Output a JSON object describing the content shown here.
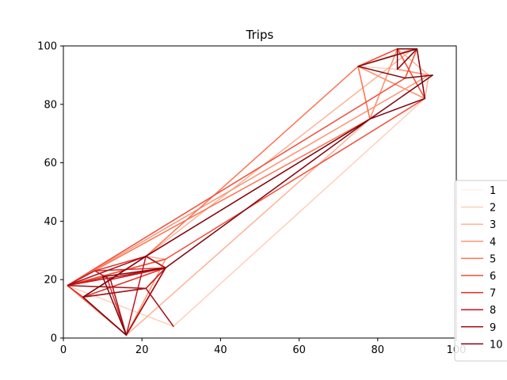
{
  "chart_data": {
    "type": "line",
    "title": "Trips",
    "xlabel": "",
    "ylabel": "",
    "xlim": [
      0,
      100
    ],
    "ylim": [
      0,
      100
    ],
    "xticks": [
      0,
      20,
      40,
      60,
      80,
      100
    ],
    "yticks": [
      0,
      20,
      40,
      60,
      80,
      100
    ],
    "grid": false,
    "legend_position": "right",
    "series": [
      {
        "name": "1",
        "color": "#fff0e9",
        "points": [
          [
            1,
            18
          ],
          [
            21,
            28
          ],
          [
            26,
            24
          ],
          [
            16,
            1
          ],
          [
            1,
            18
          ]
        ]
      },
      {
        "name": "2",
        "color": "#fdd0bc",
        "points": [
          [
            1,
            18
          ],
          [
            28,
            4
          ],
          [
            92,
            82
          ],
          [
            93,
            90
          ],
          [
            85,
            92
          ],
          [
            75,
            93
          ],
          [
            78,
            75
          ],
          [
            26,
            24
          ],
          [
            16,
            1
          ],
          [
            1,
            18
          ]
        ]
      },
      {
        "name": "3",
        "color": "#fcb398",
        "points": [
          [
            1,
            18
          ],
          [
            26,
            27
          ],
          [
            21,
            28
          ],
          [
            89,
            99
          ],
          [
            75,
            93
          ],
          [
            92,
            82
          ],
          [
            93,
            90
          ],
          [
            85,
            99
          ],
          [
            78,
            75
          ],
          [
            16,
            1
          ],
          [
            26,
            24
          ],
          [
            1,
            18
          ]
        ]
      },
      {
        "name": "4",
        "color": "#fc9474",
        "points": [
          [
            1,
            18
          ],
          [
            26,
            27
          ],
          [
            16,
            1
          ],
          [
            26,
            24
          ],
          [
            21,
            28
          ],
          [
            78,
            75
          ],
          [
            85,
            99
          ],
          [
            75,
            93
          ],
          [
            92,
            82
          ],
          [
            90,
            99
          ],
          [
            85,
            92
          ],
          [
            93,
            90
          ],
          [
            1,
            18
          ]
        ]
      },
      {
        "name": "5",
        "color": "#fb7353",
        "points": [
          [
            1,
            18
          ],
          [
            16,
            1
          ],
          [
            26,
            24
          ],
          [
            21,
            28
          ],
          [
            75,
            93
          ],
          [
            78,
            75
          ],
          [
            1,
            18
          ]
        ]
      },
      {
        "name": "6",
        "color": "#f14c37",
        "points": [
          [
            1,
            18
          ],
          [
            26,
            27
          ],
          [
            92,
            82
          ],
          [
            85,
            99
          ],
          [
            75,
            93
          ],
          [
            90,
            99
          ],
          [
            87,
            89
          ],
          [
            1,
            18
          ]
        ]
      },
      {
        "name": "7",
        "color": "#de2b25",
        "points": [
          [
            1,
            18
          ],
          [
            11,
            21
          ],
          [
            16,
            1
          ],
          [
            26,
            24
          ],
          [
            21,
            28
          ],
          [
            8,
            23
          ],
          [
            26,
            24
          ],
          [
            5,
            14
          ],
          [
            1,
            18
          ]
        ]
      },
      {
        "name": "8",
        "color": "#c2161b",
        "points": [
          [
            1,
            18
          ],
          [
            8,
            23
          ],
          [
            12,
            20
          ],
          [
            26,
            24
          ],
          [
            21,
            17
          ],
          [
            5,
            14
          ],
          [
            16,
            1
          ],
          [
            21,
            28
          ],
          [
            12,
            20
          ],
          [
            26,
            24
          ],
          [
            1,
            18
          ]
        ]
      },
      {
        "name": "9",
        "color": "#a30f15",
        "points": [
          [
            1,
            18
          ],
          [
            21,
            28
          ],
          [
            26,
            24
          ],
          [
            16,
            1
          ],
          [
            12,
            20
          ],
          [
            5,
            14
          ],
          [
            21,
            17
          ],
          [
            28,
            4
          ],
          [
            21,
            17
          ],
          [
            1,
            18
          ]
        ]
      },
      {
        "name": "10",
        "color": "#7f0610",
        "points": [
          [
            5,
            14
          ],
          [
            21,
            28
          ],
          [
            78,
            75
          ],
          [
            94,
            90
          ],
          [
            87,
            89
          ],
          [
            75,
            93
          ],
          [
            90,
            99
          ],
          [
            85,
            92
          ],
          [
            85,
            99
          ],
          [
            90,
            99
          ],
          [
            92,
            82
          ],
          [
            78,
            75
          ],
          [
            26,
            24
          ],
          [
            10,
            21
          ],
          [
            16,
            1
          ],
          [
            5,
            14
          ]
        ]
      }
    ]
  }
}
